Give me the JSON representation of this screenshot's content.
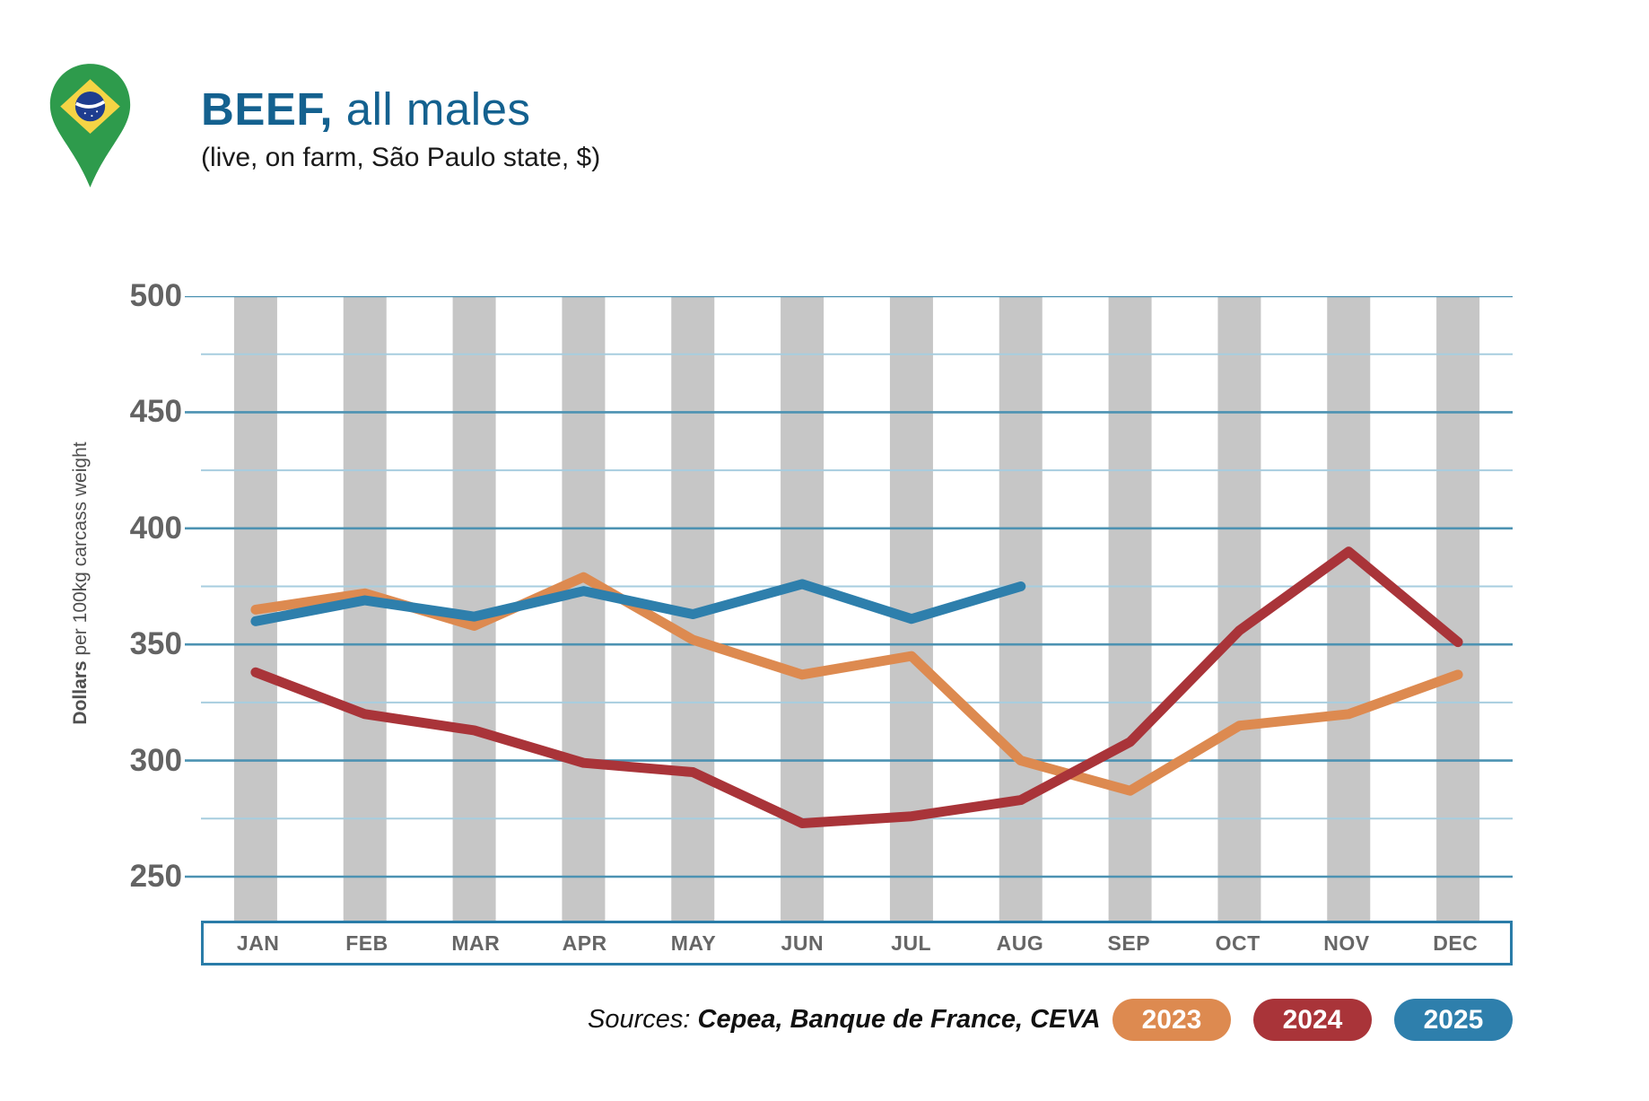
{
  "header": {
    "title_bold": "BEEF,",
    "title_rest": " all males",
    "subtitle": "(live, on farm, São Paulo state, $)",
    "title_color": "#14618F"
  },
  "icon": {
    "name": "brazil-flag-pin",
    "pin_color": "#2E9B4C",
    "flag_diamond_color": "#F5D445",
    "flag_globe_color": "#1E3D8F"
  },
  "chart_data": {
    "type": "line",
    "title": "BEEF, all males (live, on farm, São Paulo state, $)",
    "categories": [
      "JAN",
      "FEB",
      "MAR",
      "APR",
      "MAY",
      "JUN",
      "JUL",
      "AUG",
      "SEP",
      "OCT",
      "NOV",
      "DEC"
    ],
    "series": [
      {
        "name": "2023",
        "color": "#DD8A50",
        "values": [
          365,
          372,
          358,
          379,
          352,
          337,
          345,
          300,
          287,
          315,
          320,
          337
        ]
      },
      {
        "name": "2024",
        "color": "#A93439",
        "values": [
          338,
          320,
          313,
          299,
          295,
          273,
          276,
          283,
          308,
          356,
          390,
          351
        ]
      },
      {
        "name": "2025",
        "color": "#2E7FAC",
        "values": [
          360,
          369,
          362,
          373,
          363,
          376,
          361,
          375
        ]
      }
    ],
    "ylabel_bold": "Dollars",
    "ylabel_rest": " per 100kg carcass weight",
    "ylim": [
      250,
      500
    ],
    "yticks": [
      500,
      450,
      400,
      350,
      300,
      250
    ],
    "minor_step": 25,
    "grid": true,
    "legend_position": "bottom-right",
    "column_band_color": "#C6C6C6",
    "grid_major_color": "#4C92B2",
    "grid_minor_color": "#A7CDDF",
    "line_width": 11
  },
  "footer": {
    "sources_label": "Sources: ",
    "sources_value": "Cepea, Banque de France, CEVA",
    "legend": [
      {
        "label": "2023",
        "color": "#DD8A50"
      },
      {
        "label": "2024",
        "color": "#A93439"
      },
      {
        "label": "2025",
        "color": "#2E7FAC"
      }
    ]
  }
}
